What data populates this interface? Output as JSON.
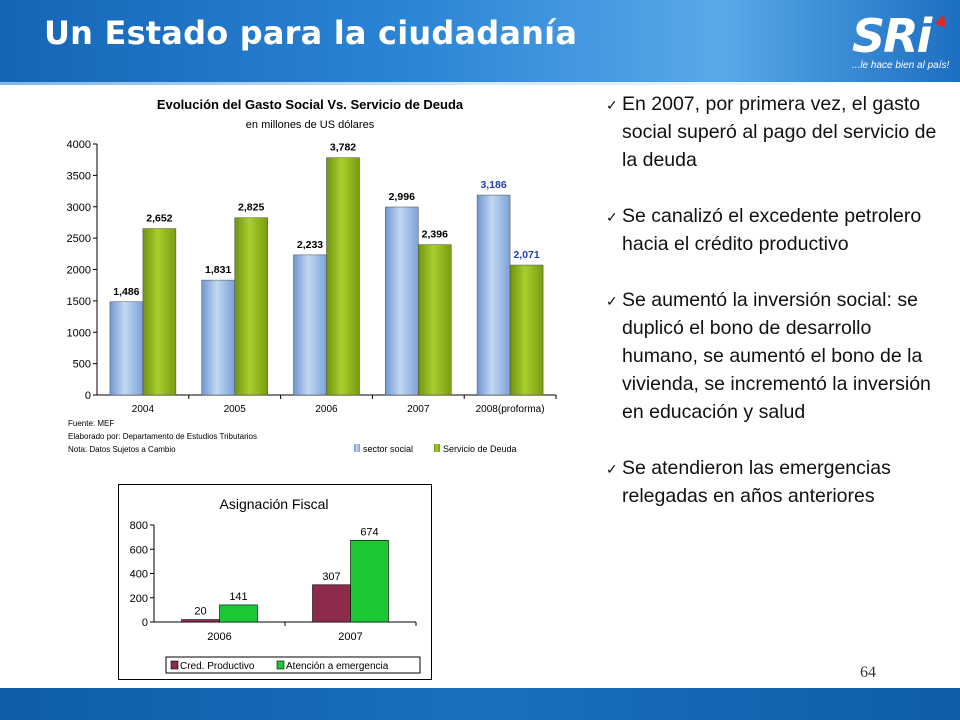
{
  "header": {
    "title": "Un Estado para la ciudadanía",
    "logo_text": "SRi",
    "logo_tagline": "...le hace bien al país!"
  },
  "colors": {
    "header_blue": "#1d70c2",
    "series_social": "#8fb4e3",
    "series_deuda": "#8db71a",
    "series_credito": "#8e2b4c",
    "series_emergencia": "#19c832"
  },
  "bullets": [
    {
      "icon": "check-icon",
      "text": "En 2007, por primera vez, el gasto social superó al pago del servicio de la deuda"
    },
    {
      "icon": "check-icon",
      "text": "Se canalizó el excedente petrolero hacia el crédito productivo"
    },
    {
      "icon": "check-icon",
      "text": "Se aumentó la inversión social: se duplicó el bono de desarrollo humano, se aumentó el bono de la vivienda, se incrementó la inversión en educación y salud"
    },
    {
      "icon": "check-icon",
      "text": "Se atendieron las emergencias relegadas en años anteriores"
    }
  ],
  "page_number": "64",
  "chart_data": [
    {
      "type": "bar",
      "title": "Evolución del Gasto Social Vs. Servicio de Deuda",
      "subtitle": "en millones de US dólares",
      "categories": [
        "2004",
        "2005",
        "2006",
        "2007",
        "2008(proforma)"
      ],
      "series": [
        {
          "name": "sector social",
          "values": [
            1486,
            1831,
            2233,
            2996,
            3186
          ],
          "labels": [
            "1,486",
            "1,831",
            "2,233",
            "2,996",
            "3,186"
          ]
        },
        {
          "name": "Servicio de Deuda",
          "values": [
            2652,
            2825,
            3782,
            2396,
            2071
          ],
          "labels": [
            "2,652",
            "2,825",
            "3,782",
            "2,396",
            "2,071"
          ]
        }
      ],
      "ylim": [
        0,
        4000
      ],
      "yticks": [
        "0",
        "500",
        "1000",
        "1500",
        "2000",
        "2500",
        "3000",
        "3500",
        "4000"
      ],
      "grid": false,
      "legend_position": "bottom-right",
      "notes": [
        "Fuente: MEF",
        "Elaborado por: Departamento de Estudios Tributarios",
        "Nota: Datos Sujetos a Cambio"
      ]
    },
    {
      "type": "bar",
      "title": "Asignación Fiscal",
      "categories": [
        "2006",
        "2007"
      ],
      "series": [
        {
          "name": "Cred. Productivo",
          "values": [
            20,
            307
          ],
          "labels": [
            "20",
            "307"
          ]
        },
        {
          "name": "Atención a emergencia",
          "values": [
            141,
            674
          ],
          "labels": [
            "141",
            "674"
          ]
        }
      ],
      "ylim": [
        0,
        800
      ],
      "yticks": [
        "0",
        "200",
        "400",
        "600",
        "800"
      ],
      "grid": false,
      "legend_position": "bottom"
    }
  ]
}
